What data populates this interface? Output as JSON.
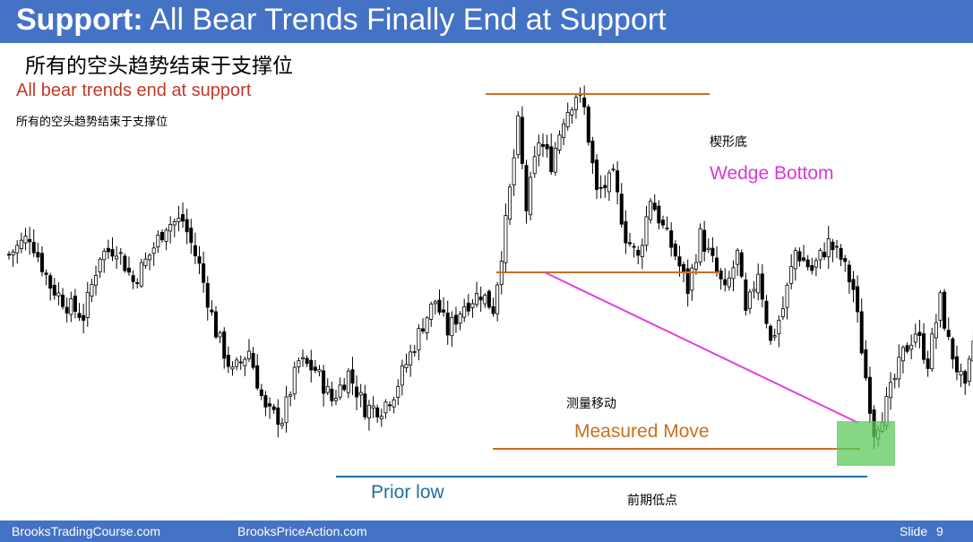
{
  "slide": {
    "title_bold": "Support:",
    "title_rest": "All Bear Trends Finally End at Support",
    "subtitle_cn": "所有的空头趋势结束于支撑位",
    "note_en": "All bear trends end at support",
    "note_cn": "所有的空头趋势结束于支撑位"
  },
  "annotations": {
    "wedge_cn": "楔形底",
    "wedge_en": "Wedge Bottom",
    "measured_cn": "测量移动",
    "measured_en": "Measured Move",
    "prior_low_en": "Prior low",
    "prior_low_cn": "前期低点"
  },
  "footer": {
    "site1": "BrooksTradingCourse.com",
    "site2": "BrooksPriceAction.com",
    "slide_label": "Slide",
    "slide_num": "9"
  },
  "colors": {
    "header": "#4472c4",
    "wedge_line": "#e040e0",
    "level_line": "#c87020",
    "prior_low_line": "#1f6fa0",
    "highlight_box": "#5cc85c"
  },
  "chart_data": {
    "type": "candlestick",
    "title": "",
    "xlabel": "",
    "ylabel": "",
    "grid": false,
    "ylim": [
      0,
      100
    ],
    "note": "",
    "anchors": [
      [
        0,
        58
      ],
      [
        5,
        63
      ],
      [
        10,
        50
      ],
      [
        14,
        45
      ],
      [
        18,
        42
      ],
      [
        22,
        58
      ],
      [
        26,
        60
      ],
      [
        30,
        51
      ],
      [
        34,
        58
      ],
      [
        38,
        66
      ],
      [
        42,
        67
      ],
      [
        46,
        55
      ],
      [
        50,
        38
      ],
      [
        54,
        27
      ],
      [
        58,
        33
      ],
      [
        62,
        17
      ],
      [
        66,
        15
      ],
      [
        70,
        30
      ],
      [
        74,
        28
      ],
      [
        78,
        20
      ],
      [
        82,
        27
      ],
      [
        86,
        18
      ],
      [
        90,
        18
      ],
      [
        93,
        22
      ],
      [
        97,
        32
      ],
      [
        100,
        40
      ],
      [
        103,
        46
      ],
      [
        106,
        38
      ],
      [
        110,
        45
      ],
      [
        114,
        48
      ],
      [
        117,
        44
      ],
      [
        120,
        66
      ],
      [
        123,
        92
      ],
      [
        125,
        70
      ],
      [
        128,
        88
      ],
      [
        131,
        82
      ],
      [
        134,
        94
      ],
      [
        137,
        100
      ],
      [
        139,
        96
      ],
      [
        142,
        74
      ],
      [
        146,
        78
      ],
      [
        149,
        63
      ],
      [
        152,
        57
      ],
      [
        155,
        73
      ],
      [
        158,
        65
      ],
      [
        161,
        58
      ],
      [
        164,
        49
      ],
      [
        167,
        63
      ],
      [
        170,
        56
      ],
      [
        173,
        48
      ],
      [
        176,
        58
      ],
      [
        178,
        42
      ],
      [
        181,
        54
      ],
      [
        184,
        35
      ],
      [
        187,
        44
      ],
      [
        190,
        59
      ],
      [
        194,
        54
      ],
      [
        198,
        61
      ],
      [
        201,
        57
      ],
      [
        204,
        49
      ],
      [
        207,
        26
      ],
      [
        209,
        12
      ],
      [
        212,
        19
      ],
      [
        216,
        32
      ],
      [
        219,
        38
      ],
      [
        222,
        30
      ],
      [
        225,
        46
      ],
      [
        227,
        35
      ],
      [
        231,
        22
      ],
      [
        234,
        42
      ]
    ],
    "levels": [
      {
        "name": "top",
        "value": 100
      },
      {
        "name": "wedge-start",
        "value": 65
      },
      {
        "name": "measured-move",
        "value": 9
      },
      {
        "name": "prior-low",
        "value": 0
      }
    ],
    "wedge_line": {
      "from": [
        129,
        65
      ],
      "to": [
        206,
        14
      ]
    }
  }
}
